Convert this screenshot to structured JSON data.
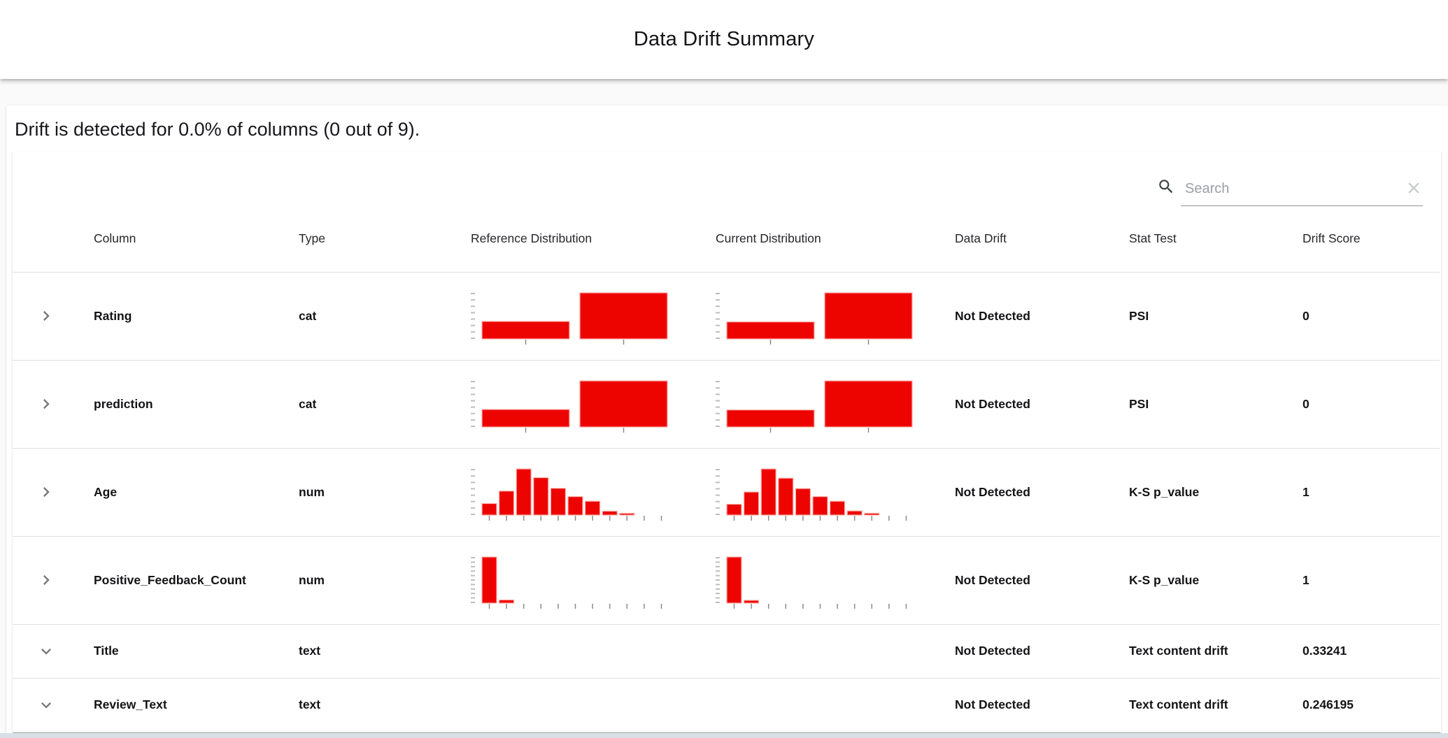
{
  "app_bar": {
    "title": "Data Drift Summary"
  },
  "summary": {
    "heading": "Drift is detected for 0.0% of columns (0 out of 9)."
  },
  "search": {
    "placeholder": "Search",
    "value": ""
  },
  "colors": {
    "bar": "#ed0400",
    "bar_stroke": "#ffb0aa",
    "axis_dash": "#bdbdbd",
    "tick": "#8a8a8a",
    "chevron": "#757575",
    "divider": "#e0e0e0",
    "search_icon": "#3c4043",
    "clear_icon": "#c4c7ca"
  },
  "table": {
    "headers": [
      "Column",
      "Type",
      "Reference Distribution",
      "Current Distribution",
      "Data Drift",
      "Stat Test",
      "Drift Score"
    ],
    "rows": [
      {
        "expand": "right",
        "column": "Rating",
        "type": "cat",
        "data_drift": "Not Detected",
        "stat_test": "PSI",
        "drift_score": "0",
        "ref_chart": {
          "type": "bar",
          "values": [
            0.38,
            1.0
          ],
          "y_ticks": 8
        },
        "cur_chart": {
          "type": "bar",
          "values": [
            0.37,
            1.0
          ],
          "y_ticks": 8
        }
      },
      {
        "expand": "right",
        "column": "prediction",
        "type": "cat",
        "data_drift": "Not Detected",
        "stat_test": "PSI",
        "drift_score": "0",
        "ref_chart": {
          "type": "bar",
          "values": [
            0.38,
            1.0
          ],
          "y_ticks": 8
        },
        "cur_chart": {
          "type": "bar",
          "values": [
            0.37,
            1.0
          ],
          "y_ticks": 8
        }
      },
      {
        "expand": "right",
        "column": "Age",
        "type": "num",
        "data_drift": "Not Detected",
        "stat_test": "K-S p_value",
        "drift_score": "1",
        "ref_chart": {
          "type": "histogram",
          "values": [
            0.25,
            0.52,
            1.0,
            0.81,
            0.58,
            0.4,
            0.3,
            0.085,
            0.035,
            0,
            0
          ],
          "y_ticks": 8
        },
        "cur_chart": {
          "type": "histogram",
          "values": [
            0.235,
            0.5,
            1.0,
            0.8,
            0.575,
            0.4,
            0.3,
            0.09,
            0.04,
            0,
            0
          ],
          "y_ticks": 8
        }
      },
      {
        "expand": "right",
        "column": "Positive_Feedback_Count",
        "type": "num",
        "data_drift": "Not Detected",
        "stat_test": "K-S p_value",
        "drift_score": "1",
        "ref_chart": {
          "type": "histogram",
          "values": [
            1.0,
            0.07,
            0,
            0,
            0,
            0,
            0,
            0,
            0,
            0,
            0
          ],
          "y_ticks": 11
        },
        "cur_chart": {
          "type": "histogram",
          "values": [
            1.0,
            0.06,
            0,
            0,
            0,
            0,
            0,
            0,
            0,
            0,
            0
          ],
          "y_ticks": 11
        }
      },
      {
        "expand": "down",
        "column": "Title",
        "type": "text",
        "data_drift": "Not Detected",
        "stat_test": "Text content drift",
        "drift_score": "0.33241",
        "ref_chart": null,
        "cur_chart": null
      },
      {
        "expand": "down",
        "column": "Review_Text",
        "type": "text",
        "data_drift": "Not Detected",
        "stat_test": "Text content drift",
        "drift_score": "0.246195",
        "ref_chart": null,
        "cur_chart": null
      }
    ]
  }
}
